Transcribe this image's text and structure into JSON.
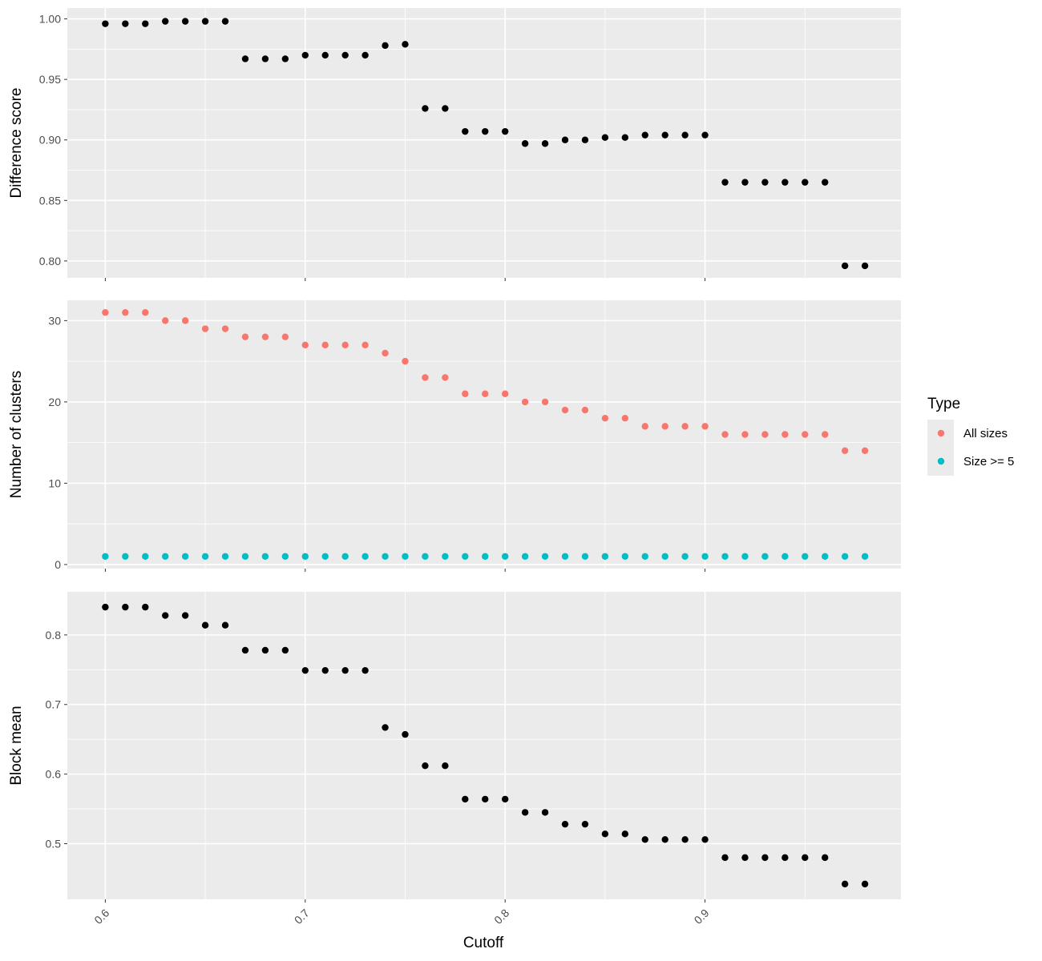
{
  "chart_data": {
    "type": "scatter",
    "x_axis": {
      "label": "Cutoff",
      "ticks": [
        "0.6",
        "0.7",
        "0.8",
        "0.9"
      ],
      "range": [
        0.581,
        0.998
      ]
    },
    "x": [
      0.6,
      0.61,
      0.62,
      0.63,
      0.64,
      0.65,
      0.66,
      0.67,
      0.68,
      0.69,
      0.7,
      0.71,
      0.72,
      0.73,
      0.74,
      0.75,
      0.76,
      0.77,
      0.78,
      0.79,
      0.8,
      0.81,
      0.82,
      0.83,
      0.84,
      0.85,
      0.86,
      0.87,
      0.88,
      0.89,
      0.9,
      0.91,
      0.92,
      0.93,
      0.94,
      0.95,
      0.96,
      0.97,
      0.98
    ],
    "legend": {
      "title": "Type",
      "entries": [
        {
          "label": "All sizes",
          "color": "#F8766D"
        },
        {
          "label": "Size >= 5",
          "color": "#00BFC4"
        }
      ],
      "placement": "right"
    },
    "panels": [
      {
        "ylabel": "Difference score",
        "ylim": [
          0.786,
          1.009
        ],
        "yticks": [
          "0.80",
          "0.85",
          "0.90",
          "0.95",
          "1.00"
        ],
        "series": [
          {
            "color": "#000000",
            "values": [
              0.996,
              0.996,
              0.996,
              0.998,
              0.998,
              0.998,
              0.998,
              0.967,
              0.967,
              0.967,
              0.97,
              0.97,
              0.97,
              0.97,
              0.978,
              0.979,
              0.926,
              0.926,
              0.907,
              0.907,
              0.907,
              0.897,
              0.897,
              0.9,
              0.9,
              0.902,
              0.902,
              0.904,
              0.904,
              0.904,
              0.904,
              0.865,
              0.865,
              0.865,
              0.865,
              0.865,
              0.865,
              0.796,
              0.796
            ]
          }
        ]
      },
      {
        "ylabel": "Number of clusters",
        "ylim": [
          -0.5,
          32.5
        ],
        "yticks": [
          "0",
          "10",
          "20",
          "30"
        ],
        "series": [
          {
            "name": "All sizes",
            "color": "#F8766D",
            "values": [
              31,
              31,
              31,
              30,
              30,
              29,
              29,
              28,
              28,
              28,
              27,
              27,
              27,
              27,
              26,
              25,
              23,
              23,
              21,
              21,
              21,
              20,
              20,
              19,
              19,
              18,
              18,
              17,
              17,
              17,
              17,
              16,
              16,
              16,
              16,
              16,
              16,
              14,
              14
            ]
          },
          {
            "name": "Size >= 5",
            "color": "#00BFC4",
            "values": [
              1,
              1,
              1,
              1,
              1,
              1,
              1,
              1,
              1,
              1,
              1,
              1,
              1,
              1,
              1,
              1,
              1,
              1,
              1,
              1,
              1,
              1,
              1,
              1,
              1,
              1,
              1,
              1,
              1,
              1,
              1,
              1,
              1,
              1,
              1,
              1,
              1,
              1,
              1
            ]
          }
        ]
      },
      {
        "ylabel": "Block mean",
        "ylim": [
          0.42,
          0.862
        ],
        "yticks": [
          "0.5",
          "0.6",
          "0.7",
          "0.8"
        ],
        "series": [
          {
            "color": "#000000",
            "values": [
              0.84,
              0.84,
              0.84,
              0.828,
              0.828,
              0.814,
              0.814,
              0.778,
              0.778,
              0.778,
              0.749,
              0.749,
              0.749,
              0.749,
              0.667,
              0.657,
              0.612,
              0.612,
              0.564,
              0.564,
              0.564,
              0.545,
              0.545,
              0.528,
              0.528,
              0.514,
              0.514,
              0.506,
              0.506,
              0.506,
              0.506,
              0.48,
              0.48,
              0.48,
              0.48,
              0.48,
              0.48,
              0.442,
              0.442
            ]
          }
        ]
      }
    ]
  }
}
